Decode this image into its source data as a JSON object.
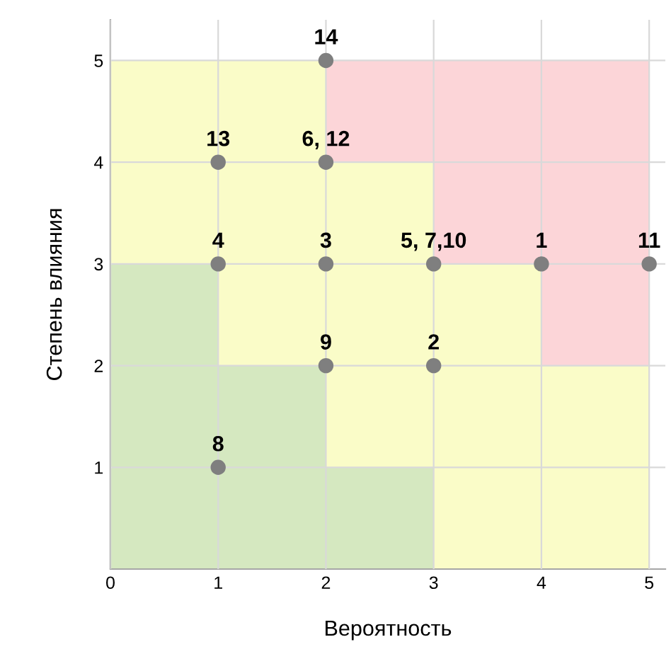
{
  "chart_data": {
    "type": "scatter",
    "xlabel": "Вероятность",
    "ylabel": "Степень влияния",
    "series": [
      {
        "color": "#7f7f7f",
        "x": [
          4,
          3,
          2,
          1,
          3,
          2,
          1,
          2,
          5,
          1,
          2
        ],
        "values": [
          3,
          2,
          3,
          3,
          3,
          4,
          1,
          2,
          3,
          4,
          5
        ]
      }
    ],
    "annotations": [
      {
        "text": "1",
        "x": 4,
        "y": 3
      },
      {
        "text": "2",
        "x": 3,
        "y": 2
      },
      {
        "text": "3",
        "x": 2,
        "y": 3
      },
      {
        "text": "4",
        "x": 1,
        "y": 3
      },
      {
        "text": "5, 7,10",
        "x": 3,
        "y": 3
      },
      {
        "text": "6, 12",
        "x": 2,
        "y": 4
      },
      {
        "text": "8",
        "x": 1,
        "y": 1
      },
      {
        "text": "9",
        "x": 2,
        "y": 2
      },
      {
        "text": "11",
        "x": 5,
        "y": 3
      },
      {
        "text": "13",
        "x": 1,
        "y": 4
      },
      {
        "text": "14",
        "x": 2,
        "y": 5
      }
    ],
    "marker": "circle",
    "xlim": [
      0,
      5.15
    ],
    "ylim": [
      0,
      5.4
    ],
    "xticks": [
      0,
      1,
      2,
      3,
      4,
      5
    ],
    "yticks": [
      1,
      2,
      3,
      4,
      5
    ],
    "grid": true
  }
}
